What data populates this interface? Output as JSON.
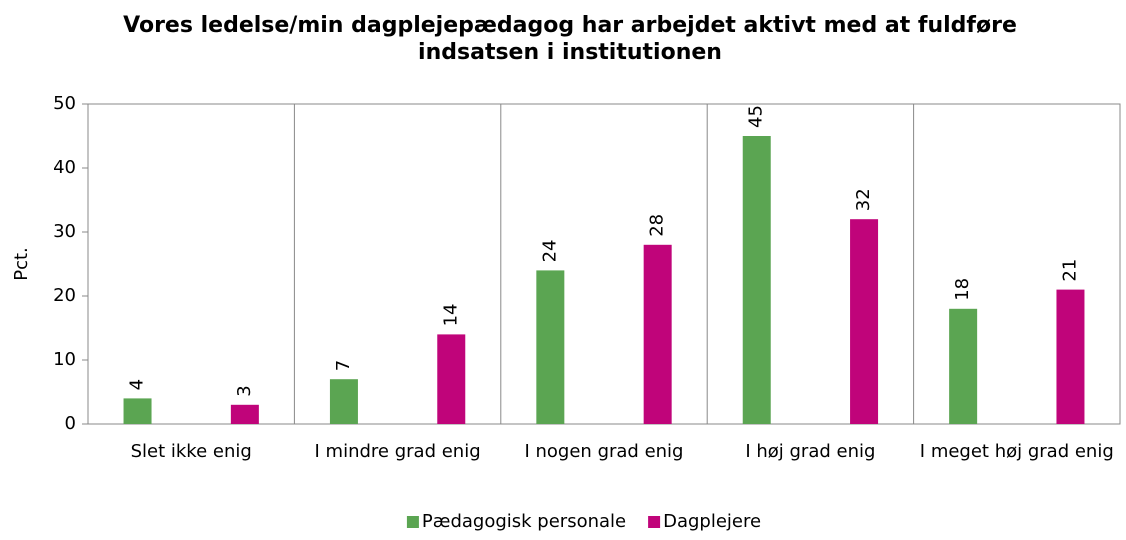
{
  "chart_data": {
    "type": "bar",
    "title": "Vores ledelse/min dagplejepædagog har arbejdet aktivt med at fuldføre indsatsen i institutionen",
    "y_label": "Pct.",
    "categories": [
      "Slet ikke enig",
      "I mindre grad enig",
      "I nogen grad enig",
      "I høj grad enig",
      "I meget høj grad enig"
    ],
    "series": [
      {
        "name": "Pædagogisk personale",
        "color": "#5ba552",
        "values": [
          4,
          7,
          24,
          45,
          18
        ]
      },
      {
        "name": "Dagplejere",
        "color": "#c0047a",
        "values": [
          3,
          14,
          28,
          32,
          21
        ]
      }
    ],
    "ylim": [
      0,
      50
    ],
    "yticks": [
      0,
      10,
      20,
      30,
      40,
      50
    ],
    "legend": "bottom"
  }
}
